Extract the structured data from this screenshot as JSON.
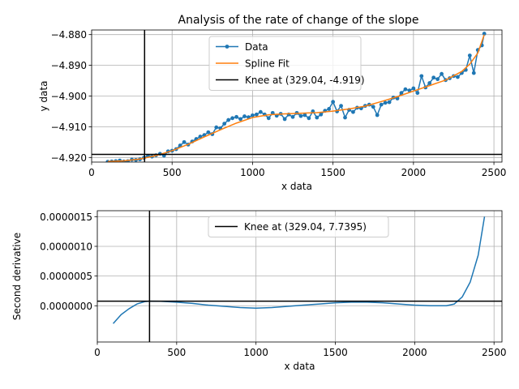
{
  "chart_data": [
    {
      "type": "line",
      "title": "Analysis of the rate of change of the slope",
      "xlabel": "x data",
      "ylabel": "y data",
      "xlim": [
        0,
        2550
      ],
      "ylim": [
        -4.9215,
        -4.8785
      ],
      "xticks": [
        0,
        500,
        1000,
        1500,
        2000,
        2500
      ],
      "xtick_labels": [
        "0",
        "500",
        "1000",
        "1500",
        "2000",
        "2500"
      ],
      "yticks": [
        -4.92,
        -4.91,
        -4.9,
        -4.89,
        -4.88
      ],
      "ytick_labels": [
        "−4.920",
        "−4.910",
        "−4.900",
        "−4.890",
        "−4.880"
      ],
      "grid": true,
      "legend_position": "top-center",
      "series": [
        {
          "name": "Data",
          "color": "#1f77b4",
          "marker": "circle",
          "x": [
            100,
            125,
            150,
            175,
            200,
            225,
            250,
            275,
            300,
            325,
            350,
            375,
            400,
            425,
            450,
            475,
            500,
            525,
            550,
            575,
            600,
            625,
            650,
            675,
            700,
            725,
            750,
            775,
            800,
            825,
            850,
            875,
            900,
            925,
            950,
            975,
            1000,
            1025,
            1050,
            1075,
            1100,
            1125,
            1150,
            1175,
            1200,
            1225,
            1250,
            1275,
            1300,
            1325,
            1350,
            1375,
            1400,
            1425,
            1450,
            1475,
            1500,
            1525,
            1550,
            1575,
            1600,
            1625,
            1650,
            1675,
            1700,
            1725,
            1750,
            1775,
            1800,
            1825,
            1850,
            1875,
            1900,
            1925,
            1950,
            1975,
            2000,
            2025,
            2050,
            2075,
            2100,
            2125,
            2150,
            2175,
            2200,
            2225,
            2250,
            2275,
            2300,
            2325,
            2350,
            2375,
            2400,
            2425,
            2440
          ],
          "y": [
            -4.9214,
            -4.9213,
            -4.9212,
            -4.921,
            -4.9213,
            -4.9212,
            -4.9207,
            -4.9208,
            -4.9206,
            -4.9201,
            -4.9195,
            -4.9197,
            -4.9193,
            -4.9188,
            -4.9194,
            -4.918,
            -4.9178,
            -4.9173,
            -4.9161,
            -4.915,
            -4.9158,
            -4.9148,
            -4.914,
            -4.9132,
            -4.9127,
            -4.9118,
            -4.9124,
            -4.9102,
            -4.9105,
            -4.909,
            -4.9078,
            -4.9072,
            -4.9068,
            -4.9075,
            -4.9066,
            -4.9069,
            -4.9063,
            -4.906,
            -4.9052,
            -4.906,
            -4.9072,
            -4.9055,
            -4.9064,
            -4.9058,
            -4.9075,
            -4.906,
            -4.9068,
            -4.9055,
            -4.9065,
            -4.9062,
            -4.9072,
            -4.905,
            -4.907,
            -4.906,
            -4.9048,
            -4.9042,
            -4.9019,
            -4.905,
            -4.9032,
            -4.907,
            -4.9045,
            -4.9052,
            -4.9038,
            -4.904,
            -4.9032,
            -4.9028,
            -4.9035,
            -4.9062,
            -4.9028,
            -4.9022,
            -4.902,
            -4.9005,
            -4.9008,
            -4.899,
            -4.8978,
            -4.8982,
            -4.8975,
            -4.899,
            -4.8935,
            -4.8972,
            -4.8958,
            -4.894,
            -4.8945,
            -4.8928,
            -4.8948,
            -4.8942,
            -4.8935,
            -4.8938,
            -4.8925,
            -4.8915,
            -4.8868,
            -4.8925,
            -4.885,
            -4.8835,
            -4.8797
          ]
        },
        {
          "name": "Spline Fit",
          "color": "#ff7f0e",
          "x": [
            100,
            200,
            300,
            400,
            500,
            600,
            700,
            800,
            900,
            1000,
            1100,
            1200,
            1300,
            1400,
            1500,
            1600,
            1700,
            1800,
            1900,
            2000,
            2100,
            2200,
            2300,
            2350,
            2400,
            2440
          ],
          "y": [
            -4.9213,
            -4.9211,
            -4.9205,
            -4.9194,
            -4.9178,
            -4.9157,
            -4.9133,
            -4.911,
            -4.9088,
            -4.907,
            -4.9061,
            -4.9058,
            -4.9056,
            -4.9054,
            -4.9049,
            -4.9042,
            -4.9033,
            -4.9018,
            -4.9002,
            -4.8984,
            -4.8966,
            -4.8948,
            -4.892,
            -4.8896,
            -4.886,
            -4.88
          ]
        }
      ],
      "knee": {
        "label": "Knee at (329.04, -4.919)",
        "x": 329.04,
        "y": -4.919,
        "color": "#000000"
      }
    },
    {
      "type": "line",
      "title": "",
      "xlabel": "x data",
      "ylabel": "Second derivative",
      "xlim": [
        0,
        2550
      ],
      "ylim": [
        -6.1e-07,
        1.6e-06
      ],
      "xticks": [
        0,
        500,
        1000,
        1500,
        2000,
        2500
      ],
      "xtick_labels": [
        "0",
        "500",
        "1000",
        "1500",
        "2000",
        "2500"
      ],
      "yticks": [
        0,
        5e-07,
        1e-06,
        1.5e-06
      ],
      "ytick_labels": [
        "0.0000000",
        "0.0000005",
        "0.0000010",
        "0.0000015"
      ],
      "grid": true,
      "legend_position": "top-center",
      "series": [
        {
          "name": "",
          "color": "#1f77b4",
          "x": [
            100,
            150,
            200,
            250,
            300,
            329.04,
            400,
            500,
            600,
            700,
            800,
            900,
            1000,
            1100,
            1200,
            1300,
            1400,
            1500,
            1600,
            1700,
            1800,
            1900,
            2000,
            2100,
            2200,
            2250,
            2300,
            2350,
            2400,
            2440
          ],
          "y": [
            -3e-07,
            -1.5e-07,
            -5e-08,
            3e-08,
            7e-08,
            7.7e-08,
            7.5e-08,
            6e-08,
            4e-08,
            1e-08,
            -1e-08,
            -3e-08,
            -4e-08,
            -3e-08,
            -1e-08,
            1e-08,
            3e-08,
            5e-08,
            6e-08,
            6e-08,
            5e-08,
            3e-08,
            1e-08,
            0.0,
            0.0,
            3e-08,
            1.5e-07,
            4e-07,
            8.5e-07,
            1.5e-06
          ]
        }
      ],
      "knee": {
        "label": "Knee at (329.04, 7.7395)",
        "x": 329.04,
        "y": 7.7395e-08,
        "color": "#000000"
      }
    }
  ]
}
